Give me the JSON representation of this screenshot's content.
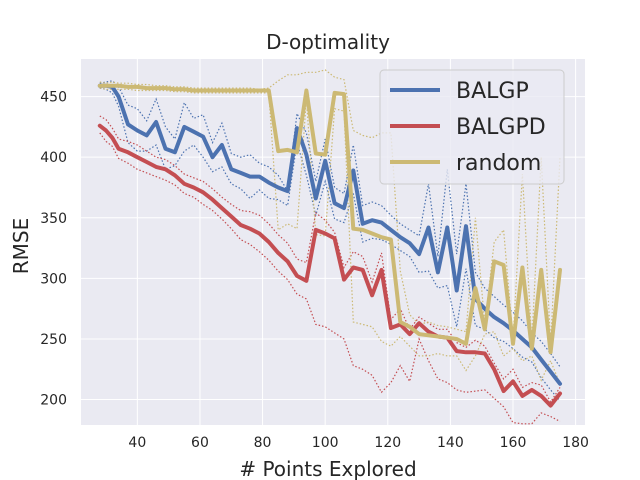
{
  "chart_data": {
    "type": "line",
    "title": "D-optimality",
    "xlabel": "# Points Explored",
    "ylabel": "RMSE",
    "xlim": [
      22,
      183
    ],
    "ylim": [
      179,
      481
    ],
    "xticks": [
      40,
      60,
      80,
      100,
      120,
      140,
      160,
      180
    ],
    "yticks": [
      200,
      250,
      300,
      350,
      400,
      450
    ],
    "grid": true,
    "legend_position": "top-right",
    "x": [
      28,
      30,
      32,
      34,
      37,
      40,
      43,
      46,
      49,
      52,
      55,
      58,
      61,
      64,
      67,
      70,
      73,
      76,
      79,
      82,
      85,
      88,
      91,
      94,
      97,
      100,
      103,
      106,
      109,
      112,
      115,
      118,
      121,
      124,
      127,
      130,
      133,
      136,
      139,
      142,
      145,
      148,
      151,
      154,
      157,
      160,
      163,
      166,
      169,
      172,
      175
    ],
    "series": [
      {
        "name": "BALGP",
        "color": "#4c72b0",
        "values": [
          459,
          459,
          458,
          450,
          427,
          422,
          418,
          429,
          407,
          404,
          425,
          421,
          417,
          400,
          410,
          390,
          387,
          384,
          384,
          379,
          375,
          372,
          424,
          402,
          366,
          397,
          362,
          358,
          389,
          345,
          348,
          346,
          340,
          334,
          329,
          320,
          342,
          305,
          342,
          290,
          343,
          283,
          275,
          268,
          263,
          257,
          250,
          243,
          233,
          223,
          213
        ],
        "upper": [
          461,
          462,
          463,
          458,
          443,
          440,
          430,
          448,
          425,
          415,
          445,
          432,
          435,
          412,
          428,
          403,
          400,
          402,
          395,
          392,
          385,
          372,
          436,
          420,
          380,
          415,
          375,
          370,
          410,
          360,
          363,
          360,
          352,
          345,
          340,
          335,
          378,
          318,
          390,
          320,
          378,
          305,
          292,
          285,
          278,
          272,
          265,
          255,
          248,
          238,
          227
        ],
        "lower": [
          457,
          456,
          453,
          442,
          412,
          405,
          405,
          410,
          390,
          393,
          405,
          410,
          400,
          388,
          392,
          378,
          374,
          366,
          373,
          366,
          365,
          360,
          412,
          385,
          352,
          380,
          349,
          346,
          370,
          330,
          333,
          332,
          328,
          323,
          318,
          305,
          306,
          292,
          294,
          260,
          308,
          261,
          258,
          251,
          248,
          242,
          235,
          231,
          218,
          208,
          199
        ]
      },
      {
        "name": "BALGPD",
        "color": "#c44e52",
        "values": [
          426,
          422,
          416,
          407,
          404,
          400,
          396,
          392,
          390,
          385,
          378,
          375,
          371,
          365,
          358,
          351,
          344,
          341,
          337,
          330,
          321,
          314,
          302,
          298,
          340,
          337,
          333,
          299,
          309,
          307,
          286,
          307,
          259,
          262,
          254,
          263,
          256,
          252,
          251,
          240,
          239,
          239,
          238,
          225,
          207,
          215,
          203,
          208,
          203,
          195,
          205
        ],
        "upper": [
          434,
          431,
          424,
          415,
          413,
          410,
          405,
          400,
          398,
          393,
          386,
          383,
          380,
          374,
          367,
          361,
          356,
          355,
          352,
          345,
          336,
          329,
          316,
          313,
          354,
          348,
          338,
          309,
          322,
          318,
          297,
          321,
          266,
          275,
          258,
          268,
          263,
          258,
          258,
          247,
          243,
          249,
          244,
          230,
          217,
          225,
          210,
          214,
          212,
          198,
          210
        ],
        "lower": [
          420,
          413,
          409,
          399,
          395,
          390,
          387,
          384,
          381,
          377,
          370,
          367,
          361,
          356,
          349,
          341,
          332,
          328,
          322,
          315,
          306,
          299,
          287,
          283,
          262,
          260,
          255,
          250,
          228,
          225,
          220,
          206,
          214,
          228,
          215,
          250,
          232,
          217,
          214,
          208,
          206,
          207,
          208,
          201,
          194,
          181,
          180,
          180,
          189,
          186,
          182
        ]
      },
      {
        "name": "random",
        "color": "#ccb974",
        "values": [
          459,
          459,
          459,
          459,
          458,
          458,
          457,
          457,
          457,
          456,
          456,
          455,
          455,
          455,
          455,
          455,
          455,
          455,
          455,
          455,
          405,
          406,
          404,
          455,
          403,
          402,
          453,
          452,
          341,
          340,
          337,
          334,
          332,
          264,
          260,
          254,
          253,
          252,
          251,
          250,
          246,
          292,
          258,
          314,
          311,
          246,
          309,
          242,
          307,
          239,
          307
        ],
        "upper": [
          462,
          461,
          462,
          461,
          461,
          460,
          460,
          459,
          459,
          458,
          458,
          457,
          457,
          457,
          457,
          457,
          457,
          457,
          456,
          457,
          463,
          468,
          468,
          470,
          470,
          472,
          466,
          464,
          422,
          418,
          416,
          420,
          420,
          306,
          270,
          262,
          264,
          261,
          260,
          258,
          256,
          350,
          262,
          330,
          340,
          250,
          386,
          248,
          400,
          246,
          400
        ],
        "lower": [
          457,
          456,
          456,
          456,
          456,
          455,
          455,
          455,
          455,
          454,
          454,
          453,
          453,
          453,
          453,
          453,
          453,
          453,
          453,
          453,
          340,
          345,
          341,
          448,
          336,
          335,
          440,
          438,
          264,
          262,
          260,
          248,
          244,
          252,
          244,
          236,
          236,
          238,
          236,
          236,
          224,
          236,
          254,
          256,
          236,
          242,
          232,
          236,
          216,
          232,
          213
        ]
      }
    ]
  }
}
